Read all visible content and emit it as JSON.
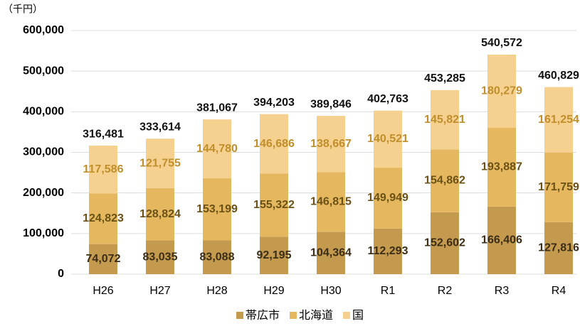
{
  "chart_data": {
    "type": "stacked_bar",
    "unit": "（千円）",
    "categories": [
      "H26",
      "H27",
      "H28",
      "H29",
      "H30",
      "R1",
      "R2",
      "R3",
      "R4"
    ],
    "series": [
      {
        "name": "帯広市",
        "color": "#c49a4f",
        "label_color": "#3b2d16",
        "values": [
          74072,
          83035,
          83088,
          92195,
          104364,
          112293,
          152602,
          166406,
          127816
        ],
        "value_labels": [
          "74,072",
          "83,035",
          "83,088",
          "92,195",
          "104,364",
          "112,293",
          "152,602",
          "166,406",
          "127,816"
        ]
      },
      {
        "name": "北海道",
        "color": "#e5b860",
        "label_color": "#6a5116",
        "values": [
          124823,
          128824,
          153199,
          155322,
          146815,
          149949,
          154862,
          193887,
          171759
        ],
        "value_labels": [
          "124,823",
          "128,824",
          "153,199",
          "155,322",
          "146,815",
          "149,949",
          "154,862",
          "193,887",
          "171,759"
        ]
      },
      {
        "name": "国",
        "color": "#f5d08f",
        "label_color": "#c08f2c",
        "values": [
          117586,
          121755,
          144780,
          146686,
          138667,
          140521,
          145821,
          180279,
          161254
        ],
        "value_labels": [
          "117,586",
          "121,755",
          "144,780",
          "146,686",
          "138,667",
          "140,521",
          "145,821",
          "180,279",
          "161,254"
        ]
      }
    ],
    "totals": [
      316481,
      333614,
      381067,
      394203,
      389846,
      402763,
      453285,
      540572,
      460829
    ],
    "total_labels": [
      "316,481",
      "333,614",
      "381,067",
      "394,203",
      "389,846",
      "402,763",
      "453,285",
      "540,572",
      "460,829"
    ],
    "ylim": [
      0,
      600000
    ],
    "yticks": [
      0,
      {
        "value": 100000,
        "label": "100,000"
      },
      {
        "value": 200000,
        "label": "200,000"
      },
      {
        "value": 300000,
        "label": "300,000"
      },
      {
        "value": 400000,
        "label": "400,000"
      },
      {
        "value": 500000,
        "label": "500,000"
      },
      {
        "value": 600000,
        "label": "600,000"
      }
    ],
    "grid": true,
    "legend": "bottom"
  }
}
